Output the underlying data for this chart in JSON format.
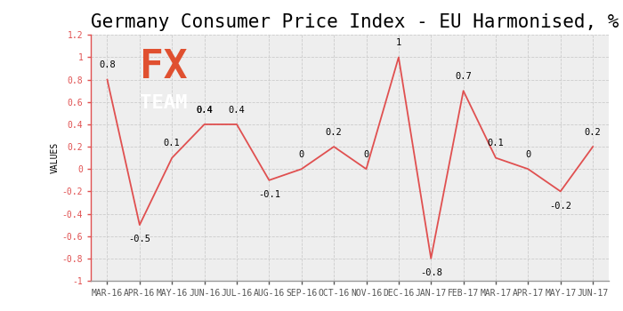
{
  "title": "Germany Consumer Price Index - EU Harmonised, %  /",
  "ylabel": "VALUES",
  "categories": [
    "MAR-16",
    "APR-16",
    "MAY-16",
    "JUN-16",
    "JUL-16",
    "AUG-16",
    "SEP-16",
    "OCT-16",
    "NOV-16",
    "DEC-16",
    "JAN-17",
    "FEB-17",
    "MAR-17",
    "APR-17",
    "MAY-17",
    "JUN-17"
  ],
  "values": [
    0.8,
    -0.5,
    0.1,
    0.4,
    0.4,
    -0.1,
    0.0,
    0.2,
    0.0,
    1.0,
    -0.8,
    0.7,
    0.1,
    0.0,
    -0.2,
    0.2
  ],
  "value_labels": [
    "0.8",
    "-0.5",
    "0.1",
    "0.4",
    "0.4",
    "-0.1",
    "0",
    "0.2",
    "0",
    "1",
    "-0.8",
    "0.7",
    "0.1",
    "0",
    "-0.2",
    "0.2"
  ],
  "ylim": [
    -1.0,
    1.2
  ],
  "yticks": [
    -1.0,
    -0.8,
    -0.6,
    -0.4,
    -0.2,
    0.0,
    0.2,
    0.4,
    0.6,
    0.8,
    1.0,
    1.2
  ],
  "line_color": "#e05050",
  "bg_color": "#ffffff",
  "plot_bg_color": "#eeeeee",
  "grid_color": "#cccccc",
  "title_fontsize": 15,
  "tick_fontsize": 7,
  "value_label_fontsize": 7.5,
  "ylabel_fontsize": 7,
  "watermark_bg": "#666870",
  "watermark_fx_color": "#e05030",
  "watermark_team_color": "#ffffff"
}
